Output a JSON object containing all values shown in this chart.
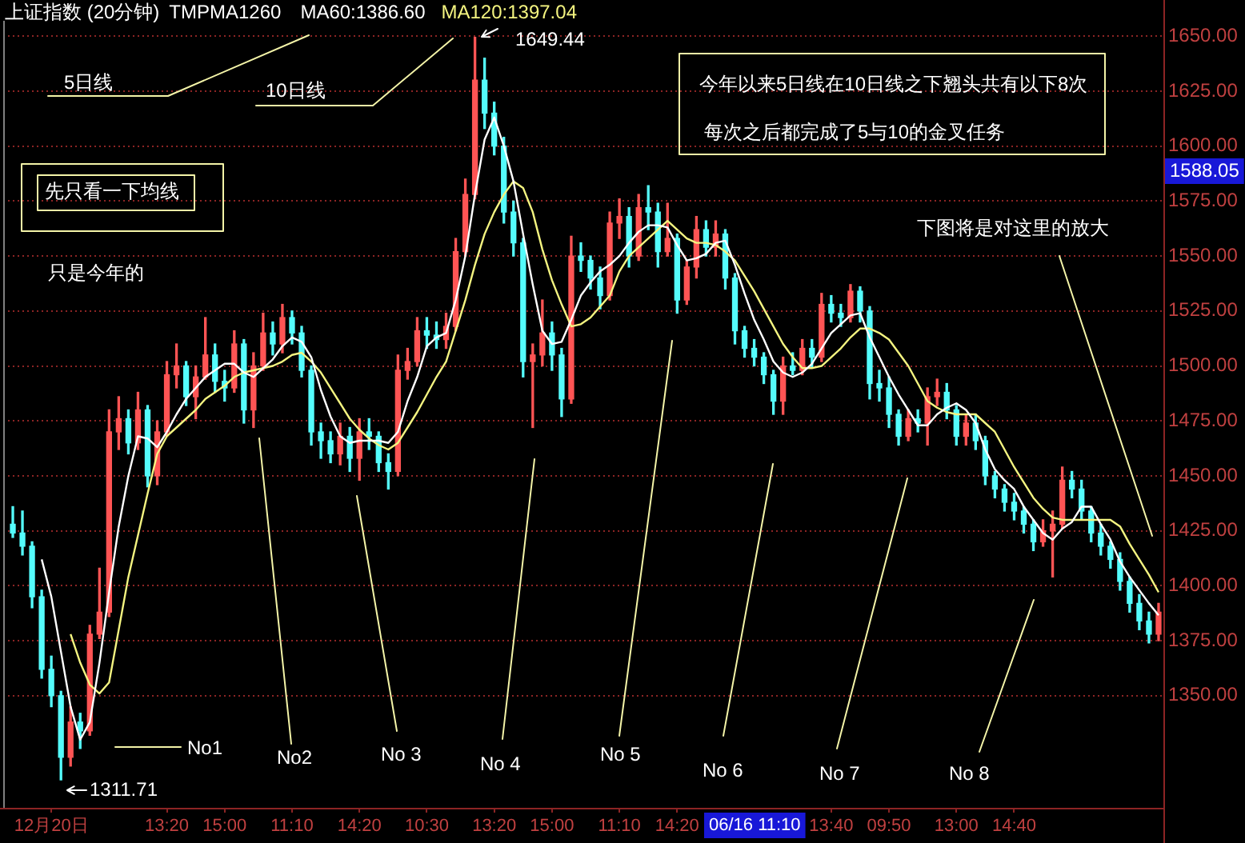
{
  "chart_data": {
    "type": "candlestick",
    "title": "上证指数 (20分钟)",
    "legend_title": "TMPMA1260",
    "legend": "top left",
    "grid": "y",
    "categories": [
      null,
      null,
      null,
      null,
      "12月20日",
      null,
      null,
      null,
      null,
      null,
      null,
      null,
      null,
      null,
      null,
      null,
      "13:20",
      null,
      null,
      null,
      null,
      null,
      "15:00",
      null,
      null,
      null,
      null,
      null,
      null,
      "11:10",
      null,
      null,
      null,
      null,
      null,
      null,
      "14:20",
      null,
      null,
      null,
      null,
      null,
      null,
      "10:30",
      null,
      null,
      null,
      null,
      null,
      null,
      "13:20",
      null,
      null,
      null,
      null,
      null,
      "15:00",
      null,
      null,
      null,
      null,
      null,
      null,
      "11:10",
      null,
      null,
      null,
      null,
      null,
      "14:20",
      null,
      null,
      null,
      null,
      null,
      null,
      null,
      null,
      null,
      null,
      null,
      null,
      null,
      null,
      null,
      "13:40",
      null,
      null,
      null,
      null,
      null,
      "09:50",
      null,
      null,
      null,
      null,
      null,
      null,
      "13:00",
      null,
      null,
      null,
      null,
      null,
      "14:40",
      null,
      null,
      null,
      null,
      null,
      null,
      null,
      null,
      null,
      null,
      null,
      null,
      null,
      null,
      null
    ],
    "ohlc": [
      [
        1428,
        1436,
        1422,
        1424
      ],
      [
        1424,
        1434,
        1414,
        1418
      ],
      [
        1418,
        1420,
        1390,
        1395
      ],
      [
        1395,
        1398,
        1358,
        1362
      ],
      [
        1362,
        1368,
        1345,
        1350
      ],
      [
        1350,
        1352,
        1311.71,
        1322
      ],
      [
        1322,
        1345,
        1318,
        1338
      ],
      [
        1338,
        1342,
        1326,
        1334
      ],
      [
        1334,
        1382,
        1332,
        1378
      ],
      [
        1378,
        1408,
        1376,
        1388
      ],
      [
        1388,
        1480,
        1386,
        1470
      ],
      [
        1470,
        1486,
        1462,
        1476
      ],
      [
        1476,
        1480,
        1460,
        1465
      ],
      [
        1465,
        1488,
        1462,
        1480
      ],
      [
        1480,
        1482,
        1445,
        1450
      ],
      [
        1450,
        1475,
        1446,
        1470
      ],
      [
        1470,
        1502,
        1468,
        1496
      ],
      [
        1496,
        1510,
        1490,
        1500
      ],
      [
        1500,
        1502,
        1482,
        1486
      ],
      [
        1486,
        1500,
        1476,
        1495
      ],
      [
        1495,
        1522,
        1494,
        1505
      ],
      [
        1505,
        1510,
        1488,
        1493
      ],
      [
        1493,
        1498,
        1484,
        1490
      ],
      [
        1490,
        1516,
        1488,
        1510
      ],
      [
        1510,
        1512,
        1474,
        1480
      ],
      [
        1480,
        1506,
        1472,
        1500
      ],
      [
        1500,
        1524,
        1498,
        1515
      ],
      [
        1515,
        1520,
        1505,
        1510
      ],
      [
        1510,
        1528,
        1506,
        1522
      ],
      [
        1522,
        1525,
        1510,
        1515
      ],
      [
        1515,
        1518,
        1495,
        1498
      ],
      [
        1498,
        1500,
        1464,
        1470
      ],
      [
        1470,
        1474,
        1458,
        1466
      ],
      [
        1466,
        1470,
        1456,
        1460
      ],
      [
        1460,
        1474,
        1455,
        1468
      ],
      [
        1468,
        1472,
        1452,
        1458
      ],
      [
        1458,
        1476,
        1448,
        1470
      ],
      [
        1470,
        1476,
        1462,
        1468
      ],
      [
        1468,
        1470,
        1452,
        1456
      ],
      [
        1456,
        1460,
        1444,
        1452
      ],
      [
        1452,
        1505,
        1450,
        1498
      ],
      [
        1498,
        1508,
        1494,
        1502
      ],
      [
        1502,
        1522,
        1500,
        1516
      ],
      [
        1516,
        1522,
        1508,
        1514
      ],
      [
        1514,
        1520,
        1508,
        1512
      ],
      [
        1512,
        1524,
        1508,
        1518
      ],
      [
        1518,
        1558,
        1516,
        1552
      ],
      [
        1552,
        1585,
        1550,
        1578
      ],
      [
        1578,
        1649.44,
        1576,
        1630
      ],
      [
        1630,
        1640,
        1608,
        1615
      ],
      [
        1615,
        1620,
        1596,
        1600
      ],
      [
        1600,
        1604,
        1565,
        1570
      ],
      [
        1570,
        1575,
        1550,
        1556
      ],
      [
        1556,
        1558,
        1495,
        1502
      ],
      [
        1502,
        1510,
        1472,
        1505
      ],
      [
        1505,
        1530,
        1500,
        1515
      ],
      [
        1515,
        1520,
        1498,
        1505
      ],
      [
        1505,
        1508,
        1477,
        1485
      ],
      [
        1485,
        1559,
        1483,
        1550
      ],
      [
        1550,
        1556,
        1543,
        1548
      ],
      [
        1548,
        1550,
        1535,
        1540
      ],
      [
        1540,
        1545,
        1526,
        1532
      ],
      [
        1532,
        1570,
        1530,
        1565
      ],
      [
        1565,
        1576,
        1558,
        1568
      ],
      [
        1568,
        1572,
        1545,
        1550
      ],
      [
        1550,
        1578,
        1548,
        1572
      ],
      [
        1572,
        1582,
        1562,
        1570
      ],
      [
        1570,
        1574,
        1545,
        1552
      ],
      [
        1552,
        1574,
        1550,
        1558
      ],
      [
        1558,
        1560,
        1524,
        1530
      ],
      [
        1530,
        1548,
        1528,
        1545
      ],
      [
        1545,
        1568,
        1540,
        1562
      ],
      [
        1562,
        1566,
        1550,
        1554
      ],
      [
        1554,
        1566,
        1550,
        1560
      ],
      [
        1560,
        1562,
        1535,
        1540
      ],
      [
        1540,
        1542,
        1510,
        1516
      ],
      [
        1516,
        1518,
        1504,
        1508
      ],
      [
        1508,
        1512,
        1500,
        1504
      ],
      [
        1504,
        1506,
        1492,
        1496
      ],
      [
        1496,
        1498,
        1478,
        1484
      ],
      [
        1484,
        1504,
        1478,
        1500
      ],
      [
        1500,
        1506,
        1496,
        1498
      ],
      [
        1498,
        1512,
        1496,
        1508
      ],
      [
        1508,
        1512,
        1499,
        1504
      ],
      [
        1504,
        1533,
        1502,
        1528
      ],
      [
        1528,
        1532,
        1520,
        1524
      ],
      [
        1524,
        1528,
        1518,
        1522
      ],
      [
        1522,
        1537,
        1520,
        1534
      ],
      [
        1534,
        1536,
        1520,
        1525
      ],
      [
        1525,
        1527,
        1485,
        1492
      ],
      [
        1492,
        1498,
        1484,
        1490
      ],
      [
        1490,
        1495,
        1472,
        1478
      ],
      [
        1478,
        1480,
        1464,
        1468
      ],
      [
        1468,
        1480,
        1466,
        1476
      ],
      [
        1476,
        1480,
        1470,
        1474
      ],
      [
        1474,
        1490,
        1464,
        1486
      ],
      [
        1486,
        1494,
        1482,
        1488
      ],
      [
        1488,
        1492,
        1476,
        1480
      ],
      [
        1480,
        1482,
        1464,
        1468
      ],
      [
        1468,
        1478,
        1464,
        1474
      ],
      [
        1474,
        1478,
        1462,
        1466
      ],
      [
        1466,
        1468,
        1446,
        1450
      ],
      [
        1450,
        1452,
        1440,
        1444
      ],
      [
        1444,
        1446,
        1434,
        1438
      ],
      [
        1438,
        1442,
        1430,
        1434
      ],
      [
        1434,
        1436,
        1424,
        1428
      ],
      [
        1428,
        1430,
        1416,
        1420
      ],
      [
        1420,
        1430,
        1418,
        1425
      ],
      [
        1425,
        1434,
        1404,
        1428
      ],
      [
        1428,
        1454,
        1426,
        1448
      ],
      [
        1448,
        1452,
        1440,
        1444
      ],
      [
        1444,
        1448,
        1430,
        1434
      ],
      [
        1434,
        1436,
        1420,
        1424
      ],
      [
        1424,
        1428,
        1414,
        1418
      ],
      [
        1418,
        1420,
        1408,
        1412
      ],
      [
        1412,
        1415,
        1398,
        1402
      ],
      [
        1402,
        1404,
        1388,
        1392
      ],
      [
        1392,
        1396,
        1380,
        1384
      ],
      [
        1384,
        1388,
        1374,
        1378
      ],
      [
        1378,
        1392,
        1375,
        1388
      ]
    ],
    "colors": [
      "#54fcfc",
      "#54fcfc",
      "#54fcfc",
      "#54fcfc",
      "#54fcfc",
      "#54fcfc",
      "#ff5454",
      "#54fcfc",
      "#ff5454",
      "#ff5454",
      "#ff5454",
      "#ff5454",
      "#54fcfc",
      "#ff5454",
      "#54fcfc",
      "#ff5454",
      "#ff5454",
      "#ff5454",
      "#54fcfc",
      "#ff5454",
      "#ff5454",
      "#54fcfc",
      "#54fcfc",
      "#ff5454",
      "#54fcfc",
      "#ff5454",
      "#ff5454",
      "#54fcfc",
      "#ff5454",
      "#54fcfc",
      "#54fcfc",
      "#54fcfc",
      "#54fcfc",
      "#54fcfc",
      "#ff5454",
      "#54fcfc",
      "#ff5454",
      "#54fcfc",
      "#54fcfc",
      "#54fcfc",
      "#ff5454",
      "#ff5454",
      "#ff5454",
      "#54fcfc",
      "#54fcfc",
      "#ff5454",
      "#ff5454",
      "#ff5454",
      "#ff5454",
      "#54fcfc",
      "#54fcfc",
      "#54fcfc",
      "#54fcfc",
      "#54fcfc",
      "#ff5454",
      "#ff5454",
      "#54fcfc",
      "#54fcfc",
      "#ff5454",
      "#54fcfc",
      "#54fcfc",
      "#54fcfc",
      "#ff5454",
      "#ff5454",
      "#54fcfc",
      "#ff5454",
      "#54fcfc",
      "#54fcfc",
      "#ff5454",
      "#54fcfc",
      "#ff5454",
      "#ff5454",
      "#54fcfc",
      "#ff5454",
      "#54fcfc",
      "#54fcfc",
      "#54fcfc",
      "#54fcfc",
      "#54fcfc",
      "#54fcfc",
      "#ff5454",
      "#54fcfc",
      "#ff5454",
      "#54fcfc",
      "#ff5454",
      "#54fcfc",
      "#54fcfc",
      "#ff5454",
      "#54fcfc",
      "#54fcfc",
      "#54fcfc",
      "#54fcfc",
      "#54fcfc",
      "#ff5454",
      "#54fcfc",
      "#ff5454",
      "#ff5454",
      "#54fcfc",
      "#54fcfc",
      "#ff5454",
      "#54fcfc",
      "#54fcfc",
      "#54fcfc",
      "#54fcfc",
      "#54fcfc",
      "#54fcfc",
      "#54fcfc",
      "#ff5454",
      "#ff5454",
      "#ff5454",
      "#54fcfc",
      "#54fcfc",
      "#54fcfc",
      "#54fcfc",
      "#54fcfc",
      "#54fcfc",
      "#54fcfc",
      "#54fcfc",
      "#54fcfc",
      "#ff5454"
    ],
    "series": [
      {
        "type": "line",
        "name": "MA60:1386.60",
        "color": "#ffffff",
        "values": [
          null,
          null,
          null,
          1412,
          1395,
          1370,
          1345,
          1330,
          1338,
          1365,
          1397,
          1427,
          1450,
          1468,
          1467,
          1463,
          1470,
          1478,
          1485,
          1490,
          1495,
          1498,
          1501,
          1501,
          1497,
          1495,
          1499,
          1503,
          1509,
          1513,
          1511,
          1504,
          1489,
          1477,
          1468,
          1465,
          1466,
          1466,
          1466,
          1465,
          1470,
          1484,
          1495,
          1509,
          1513,
          1515,
          1530,
          1550,
          1578,
          1603,
          1613,
          1600,
          1584,
          1560,
          1537,
          1516,
          1510,
          1511,
          1521,
          1532,
          1538,
          1543,
          1546,
          1550,
          1556,
          1561,
          1564,
          1564,
          1563,
          1555,
          1548,
          1549,
          1551,
          1556,
          1557,
          1546,
          1533,
          1521,
          1512,
          1502,
          1497,
          1495,
          1497,
          1501,
          1508,
          1515,
          1519,
          1523,
          1524,
          1513,
          1504,
          1495,
          1487,
          1480,
          1473,
          1473,
          1478,
          1481,
          1483,
          1480,
          1474,
          1462,
          1453,
          1448,
          1444,
          1436,
          1430,
          1424,
          1421,
          1426,
          1429,
          1436,
          1436,
          1428,
          1421,
          1411,
          1404,
          1398,
          1392,
          1386.6
        ]
      },
      {
        "type": "line",
        "name": "MA120:1397.04",
        "color": "#f4f480",
        "values": [
          null,
          null,
          null,
          null,
          null,
          null,
          1378,
          1365,
          1355,
          1351,
          1356,
          1380,
          1404,
          1423,
          1442,
          1460,
          1468,
          1472,
          1476,
          1480,
          1485,
          1488,
          1491,
          1495,
          1497,
          1498,
          1499,
          1500,
          1502,
          1505,
          1506,
          1502,
          1497,
          1490,
          1483,
          1476,
          1471,
          1467,
          1464,
          1462,
          1465,
          1472,
          1479,
          1487,
          1495,
          1502,
          1516,
          1530,
          1546,
          1560,
          1570,
          1578,
          1584,
          1581,
          1570,
          1553,
          1539,
          1528,
          1518,
          1519,
          1522,
          1527,
          1532,
          1543,
          1550,
          1554,
          1558,
          1562,
          1566,
          1562,
          1558,
          1556,
          1556,
          1555,
          1552,
          1548,
          1541,
          1534,
          1526,
          1518,
          1510,
          1504,
          1499,
          1499,
          1500,
          1504,
          1508,
          1513,
          1517,
          1517,
          1515,
          1512,
          1506,
          1500,
          1492,
          1484,
          1481,
          1479,
          1478,
          1478,
          1478,
          1474,
          1470,
          1462,
          1454,
          1447,
          1440,
          1435,
          1431,
          1430,
          1430,
          1430,
          1430,
          1430,
          1430,
          1427,
          1419,
          1412,
          1405,
          1397.04
        ]
      }
    ],
    "ylim": [
      1299,
      1657
    ],
    "yticks": [
      {
        "value": 1350,
        "label": "1350.00"
      },
      {
        "value": 1375,
        "label": "1375.00"
      },
      {
        "value": 1400,
        "label": "1400.00"
      },
      {
        "value": 1425,
        "label": "1425.00"
      },
      {
        "value": 1450,
        "label": "1450.00"
      },
      {
        "value": 1475,
        "label": "1475.00"
      },
      {
        "value": 1500,
        "label": "1500.00"
      },
      {
        "value": 1525,
        "label": "1525.00"
      },
      {
        "value": 1550,
        "label": "1550.00"
      },
      {
        "value": 1575,
        "label": "1575.00"
      },
      {
        "value": 1600,
        "label": "1600.00"
      },
      {
        "value": 1625,
        "label": "1625.00"
      },
      {
        "value": 1650,
        "label": "1650.00"
      }
    ],
    "annotations": [
      "5日线",
      "10日线",
      "先只看一下均线",
      "只是今年的",
      "今年以来5日线在10日线之下翘头共有以下8次",
      "每次之后都完成了5与10的金叉任务",
      "下图将是对这里的放大",
      "No1",
      "No2",
      "No 3",
      "No 4",
      "No 5",
      "No 6",
      "No 7",
      "No 8",
      "1649.44",
      "1311.71",
      "1588.05",
      "06/16 11:10"
    ]
  }
}
